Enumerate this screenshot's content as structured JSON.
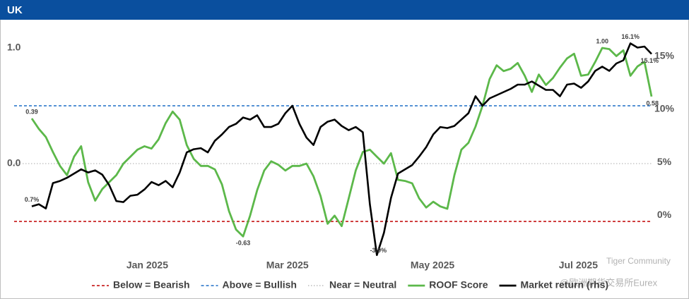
{
  "header": {
    "title": "UK"
  },
  "chart_data": {
    "type": "line",
    "xlim": [
      0,
      88
    ],
    "xticks": [
      {
        "value": 16.4,
        "label": "Jan 2025"
      },
      {
        "value": 36.3,
        "label": "Mar 2025"
      },
      {
        "value": 56.9,
        "label": "May 2025"
      },
      {
        "value": 77.6,
        "label": "Jul 2025"
      }
    ],
    "ylim": [
      -0.8,
      1.2
    ],
    "yticks": [
      {
        "value": 1,
        "label": "1.0"
      },
      {
        "value": 0,
        "label": "0.0"
      }
    ],
    "y2lim": [
      -4,
      17.85
    ],
    "y2ticks": [
      {
        "value": 15,
        "label": "15%"
      },
      {
        "value": 10,
        "label": "10%"
      },
      {
        "value": 5,
        "label": "5%"
      },
      {
        "value": 0,
        "label": "0%"
      }
    ],
    "reference_lines": [
      {
        "name": "Below = Bearish",
        "value": -0.5,
        "color": "#c00000",
        "style": "dashed"
      },
      {
        "name": "Above = Bullish",
        "value": 0.5,
        "color": "#1f6fc5",
        "style": "dashed"
      },
      {
        "name": "Near = Neutral",
        "value": 0,
        "color": "#bbbbbb",
        "style": "dotted"
      }
    ],
    "series": [
      {
        "name": "ROOF Score",
        "color": "#5cb84a",
        "axis": "y",
        "values": [
          0.39,
          0.3,
          0.23,
          0.1,
          -0.02,
          -0.1,
          0.06,
          0.15,
          -0.16,
          -0.32,
          -0.22,
          -0.16,
          -0.1,
          0,
          0.06,
          0.12,
          0.15,
          0.13,
          0.21,
          0.35,
          0.45,
          0.38,
          0.16,
          0.04,
          -0.02,
          -0.02,
          -0.05,
          -0.18,
          -0.41,
          -0.57,
          -0.63,
          -0.45,
          -0.23,
          -0.06,
          0.02,
          -0.01,
          -0.06,
          -0.02,
          -0.02,
          0,
          -0.11,
          -0.28,
          -0.52,
          -0.45,
          -0.54,
          -0.3,
          -0.06,
          0.1,
          0.12,
          0.06,
          0,
          0.09,
          -0.14,
          -0.15,
          -0.17,
          -0.3,
          -0.38,
          -0.33,
          -0.37,
          -0.39,
          -0.1,
          0.12,
          0.18,
          0.32,
          0.5,
          0.73,
          0.85,
          0.8,
          0.82,
          0.87,
          0.76,
          0.62,
          0.77,
          0.68,
          0.74,
          0.83,
          0.91,
          0.95,
          0.76,
          0.77,
          0.88,
          1.0,
          0.99,
          0.93,
          0.98,
          0.76,
          0.84,
          0.88,
          0.58
        ]
      },
      {
        "name": "Market return (rhs)",
        "color": "#000000",
        "axis": "y2",
        "values": [
          0.7,
          0.9,
          0.5,
          2.9,
          3.1,
          3.4,
          3.8,
          4.2,
          3.9,
          4.1,
          3.7,
          2.7,
          1.2,
          1.1,
          1.7,
          1.8,
          2.3,
          3.0,
          2.7,
          3.1,
          2.5,
          3.9,
          5.8,
          6.1,
          6.2,
          5.8,
          6.9,
          7.5,
          8.2,
          8.5,
          9.1,
          8.9,
          9.3,
          8.2,
          8.2,
          8.5,
          9.5,
          10.2,
          8.5,
          7.2,
          6.5,
          8.2,
          8.7,
          8.9,
          8.3,
          7.9,
          8.2,
          7.7,
          0.9,
          -3.9,
          -1.8,
          1.5,
          3.8,
          4.2,
          4.6,
          5.4,
          6.3,
          7.5,
          8.2,
          8.1,
          8.3,
          8.9,
          9.5,
          11.1,
          10.2,
          10.9,
          11.2,
          11.5,
          11.8,
          12.2,
          12.2,
          12.5,
          12.1,
          11.7,
          11.7,
          11.1,
          12.2,
          12.3,
          11.9,
          12.5,
          13.5,
          13.9,
          13.5,
          14.2,
          14.5,
          16.1,
          15.7,
          15.8,
          15.1
        ]
      }
    ],
    "annotations": [
      {
        "label": "0.39",
        "x": 0,
        "y": 0.39,
        "axis": "y",
        "position": "above"
      },
      {
        "label": "-0.63",
        "x": 30,
        "y": -0.63,
        "axis": "y",
        "position": "below"
      },
      {
        "label": "1.00",
        "x": 81,
        "y": 1.0,
        "axis": "y",
        "position": "above"
      },
      {
        "label": "0.58",
        "x": 88,
        "y": 0.58,
        "axis": "y",
        "position": "below"
      },
      {
        "label": "0.7%",
        "x": 0,
        "y": 0.7,
        "axis": "y2",
        "position": "above"
      },
      {
        "label": "-3.9%",
        "x": 49,
        "y": -3.9,
        "axis": "y2",
        "position": "right"
      },
      {
        "label": "16.1%",
        "x": 85,
        "y": 16.1,
        "axis": "y2",
        "position": "above"
      },
      {
        "label": "15.1%",
        "x": 88,
        "y": 15.1,
        "axis": "y2",
        "position": "below"
      }
    ]
  },
  "watermark": {
    "line1": "Tiger Community",
    "line2": "@欧洲期货交易所Eurex"
  }
}
